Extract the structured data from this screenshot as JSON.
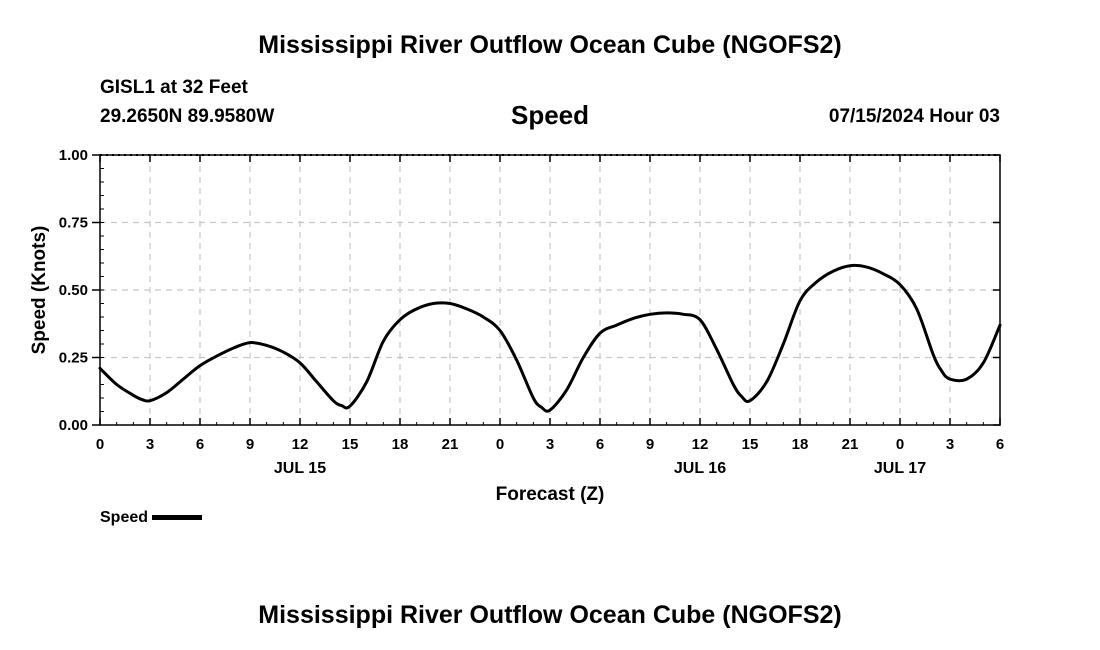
{
  "header": {
    "title": "Mississippi River Outflow Ocean Cube (NGOFS2)",
    "station": "GISL1 at 32 Feet",
    "coords": "29.2650N  89.9580W",
    "variable": "Speed",
    "timestamp": "07/15/2024 Hour 03"
  },
  "legend": {
    "label": "Speed"
  },
  "footer": {
    "title": "Mississippi River Outflow Ocean Cube (NGOFS2)"
  },
  "colors": {
    "line": "#000000",
    "grid": "#c8c8c8",
    "axis": "#000000"
  },
  "chart_data": {
    "type": "line",
    "title": "Speed",
    "xlabel": "Forecast (Z)",
    "ylabel": "Speed (Knots)",
    "ylim": [
      0,
      1
    ],
    "xlim": [
      0,
      54
    ],
    "grid": true,
    "yticks": [
      0,
      0.25,
      0.5,
      0.75,
      1.0
    ],
    "ytick_labels": [
      "0.00",
      "0.25",
      "0.50",
      "0.75",
      "1.00"
    ],
    "xticks": [
      0,
      3,
      6,
      9,
      12,
      15,
      18,
      21,
      24,
      27,
      30,
      33,
      36,
      39,
      42,
      45,
      48,
      51,
      54
    ],
    "xtick_labels": [
      "0",
      "3",
      "6",
      "9",
      "12",
      "15",
      "18",
      "21",
      "0",
      "3",
      "6",
      "9",
      "12",
      "15",
      "18",
      "21",
      "0",
      "3",
      "6"
    ],
    "date_labels": [
      {
        "hour": 12,
        "label": "JUL 15"
      },
      {
        "hour": 36,
        "label": "JUL 16"
      },
      {
        "hour": 48,
        "label": "JUL 17"
      }
    ],
    "legend": "bottom-left",
    "series": [
      {
        "name": "Speed",
        "x": [
          0,
          1,
          2,
          2.5,
          3,
          4,
          5,
          6,
          7,
          8,
          9,
          10,
          11,
          12,
          13,
          14,
          14.5,
          15,
          16,
          17,
          18,
          19,
          20,
          21,
          22,
          23,
          24,
          25,
          26,
          26.5,
          27,
          28,
          29,
          30,
          31,
          32,
          33,
          34,
          35,
          36,
          37,
          38,
          38.5,
          39,
          40,
          41,
          42,
          43,
          44,
          45,
          46,
          47,
          48,
          49,
          50,
          50.5,
          51,
          52,
          53,
          54
        ],
        "values": [
          0.21,
          0.15,
          0.11,
          0.095,
          0.09,
          0.12,
          0.17,
          0.22,
          0.255,
          0.285,
          0.305,
          0.295,
          0.27,
          0.23,
          0.16,
          0.09,
          0.072,
          0.07,
          0.16,
          0.31,
          0.39,
          0.43,
          0.45,
          0.45,
          0.43,
          0.4,
          0.35,
          0.24,
          0.1,
          0.065,
          0.055,
          0.13,
          0.25,
          0.34,
          0.37,
          0.395,
          0.41,
          0.415,
          0.41,
          0.39,
          0.28,
          0.15,
          0.105,
          0.09,
          0.16,
          0.3,
          0.46,
          0.53,
          0.57,
          0.59,
          0.585,
          0.56,
          0.52,
          0.43,
          0.26,
          0.2,
          0.17,
          0.17,
          0.23,
          0.37
        ]
      }
    ]
  }
}
